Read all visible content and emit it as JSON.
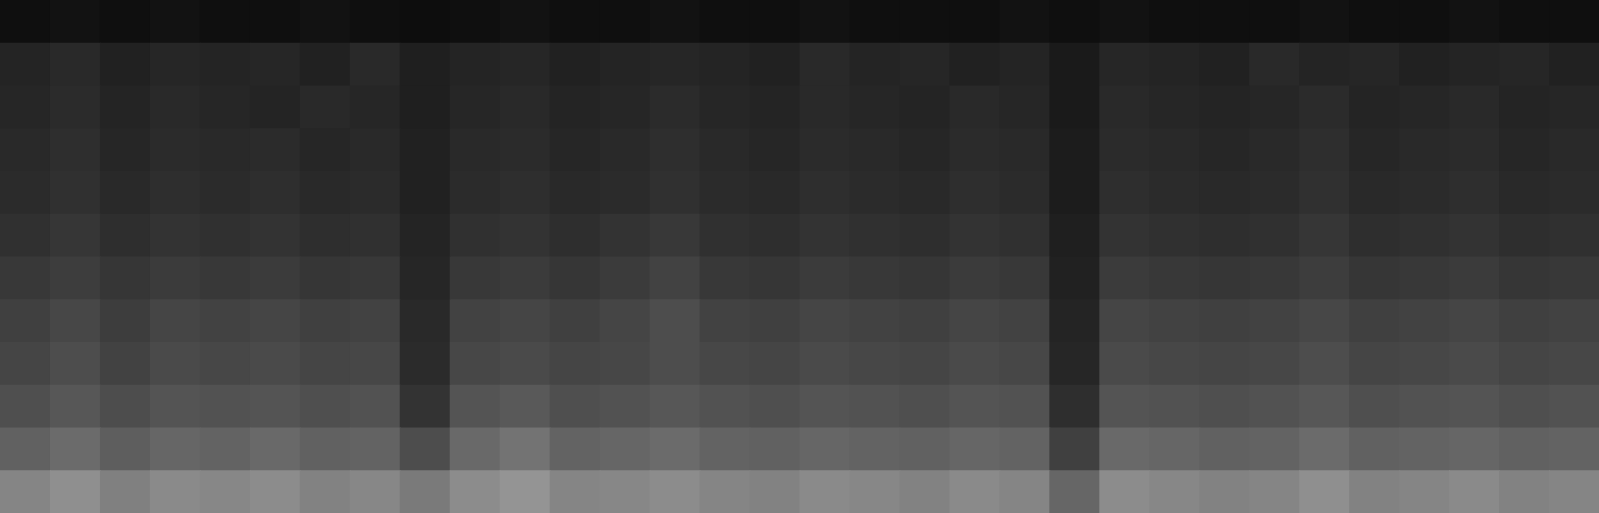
{
  "chart_data": {
    "type": "heatmap",
    "xlim": [
      0,
      32
    ],
    "ylim": [
      0,
      12
    ],
    "zlim": [
      0,
      100
    ],
    "tick_labels": false,
    "cells": [
      [
        6,
        7,
        6,
        7,
        6,
        6,
        7,
        6,
        5,
        6,
        7,
        6,
        6,
        7,
        6,
        6,
        7,
        6,
        6,
        6,
        7,
        6,
        7,
        6,
        6,
        6,
        7,
        6,
        6,
        7,
        6,
        6
      ],
      [
        14,
        16,
        13,
        15,
        14,
        15,
        13,
        16,
        12,
        14,
        15,
        13,
        14,
        15,
        14,
        13,
        16,
        14,
        15,
        13,
        14,
        10,
        15,
        14,
        13,
        16,
        14,
        15,
        13,
        14,
        15,
        13
      ],
      [
        15,
        17,
        14,
        16,
        15,
        14,
        16,
        15,
        12,
        15,
        16,
        14,
        15,
        17,
        15,
        14,
        16,
        15,
        14,
        16,
        15,
        10,
        16,
        15,
        14,
        15,
        17,
        14,
        15,
        16,
        14,
        15
      ],
      [
        16,
        18,
        15,
        17,
        16,
        17,
        15,
        16,
        13,
        16,
        17,
        15,
        16,
        18,
        16,
        15,
        17,
        16,
        15,
        17,
        16,
        11,
        17,
        16,
        15,
        16,
        18,
        15,
        16,
        17,
        15,
        16
      ],
      [
        17,
        19,
        16,
        18,
        17,
        18,
        16,
        17,
        13,
        17,
        18,
        16,
        17,
        19,
        17,
        16,
        18,
        17,
        16,
        18,
        17,
        11,
        18,
        17,
        16,
        17,
        19,
        16,
        17,
        18,
        16,
        17
      ],
      [
        19,
        21,
        18,
        20,
        19,
        20,
        18,
        19,
        14,
        19,
        20,
        18,
        20,
        22,
        19,
        18,
        20,
        19,
        18,
        20,
        19,
        12,
        20,
        19,
        18,
        19,
        21,
        18,
        19,
        20,
        18,
        19
      ],
      [
        22,
        24,
        21,
        23,
        22,
        23,
        21,
        22,
        15,
        22,
        23,
        21,
        23,
        26,
        22,
        21,
        23,
        22,
        21,
        23,
        22,
        13,
        23,
        22,
        21,
        22,
        24,
        21,
        22,
        23,
        21,
        22
      ],
      [
        25,
        28,
        24,
        27,
        26,
        27,
        25,
        26,
        16,
        26,
        27,
        25,
        27,
        30,
        26,
        25,
        27,
        26,
        25,
        27,
        26,
        14,
        27,
        26,
        25,
        26,
        28,
        25,
        26,
        27,
        25,
        26
      ],
      [
        27,
        30,
        26,
        29,
        28,
        29,
        27,
        28,
        17,
        28,
        29,
        27,
        28,
        30,
        28,
        27,
        29,
        28,
        27,
        29,
        28,
        15,
        29,
        28,
        27,
        28,
        30,
        27,
        28,
        29,
        27,
        28
      ],
      [
        31,
        34,
        30,
        33,
        32,
        33,
        31,
        32,
        20,
        33,
        35,
        31,
        32,
        34,
        32,
        31,
        33,
        32,
        31,
        33,
        32,
        18,
        33,
        32,
        31,
        32,
        34,
        31,
        32,
        33,
        31,
        32
      ],
      [
        38,
        42,
        37,
        40,
        39,
        41,
        38,
        39,
        30,
        41,
        45,
        39,
        40,
        42,
        39,
        38,
        40,
        39,
        38,
        40,
        39,
        25,
        41,
        40,
        38,
        39,
        42,
        38,
        39,
        40,
        38,
        39
      ],
      [
        52,
        56,
        50,
        54,
        53,
        55,
        51,
        53,
        48,
        55,
        58,
        52,
        53,
        55,
        52,
        51,
        54,
        53,
        51,
        54,
        52,
        40,
        55,
        53,
        51,
        52,
        56,
        51,
        52,
        54,
        51,
        52
      ]
    ]
  }
}
